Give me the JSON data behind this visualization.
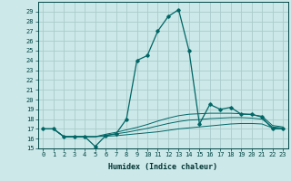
{
  "xlabel": "Humidex (Indice chaleur)",
  "bg_color": "#cce8e8",
  "grid_color": "#aacccc",
  "line_color": "#006666",
  "xlim": [
    -0.5,
    23.5
  ],
  "ylim": [
    15,
    30
  ],
  "yticks": [
    15,
    16,
    17,
    18,
    19,
    20,
    21,
    22,
    23,
    24,
    25,
    26,
    27,
    28,
    29
  ],
  "xticks": [
    0,
    1,
    2,
    3,
    4,
    5,
    6,
    7,
    8,
    9,
    10,
    11,
    12,
    13,
    14,
    15,
    16,
    17,
    18,
    19,
    20,
    21,
    22,
    23
  ],
  "main_y": [
    17.0,
    17.0,
    16.2,
    16.2,
    16.2,
    15.2,
    16.3,
    16.5,
    18.0,
    24.0,
    24.5,
    27.0,
    28.5,
    29.2,
    25.0,
    17.5,
    19.5,
    19.0,
    19.2,
    18.5,
    18.5,
    18.2,
    17.0,
    17.0
  ],
  "line1_y": [
    17.0,
    17.0,
    16.2,
    16.2,
    16.2,
    16.2,
    16.25,
    16.3,
    16.4,
    16.5,
    16.6,
    16.7,
    16.85,
    17.0,
    17.1,
    17.2,
    17.3,
    17.4,
    17.5,
    17.55,
    17.55,
    17.5,
    17.1,
    17.0
  ],
  "line2_y": [
    17.0,
    17.0,
    16.2,
    16.2,
    16.2,
    16.2,
    16.35,
    16.5,
    16.65,
    16.85,
    17.05,
    17.3,
    17.55,
    17.75,
    17.9,
    17.95,
    18.05,
    18.1,
    18.15,
    18.15,
    18.1,
    18.0,
    17.2,
    17.1
  ],
  "line3_y": [
    17.0,
    17.0,
    16.2,
    16.2,
    16.2,
    16.2,
    16.45,
    16.65,
    16.9,
    17.15,
    17.45,
    17.8,
    18.1,
    18.35,
    18.5,
    18.55,
    18.6,
    18.6,
    18.6,
    18.55,
    18.45,
    18.3,
    17.35,
    17.2
  ]
}
